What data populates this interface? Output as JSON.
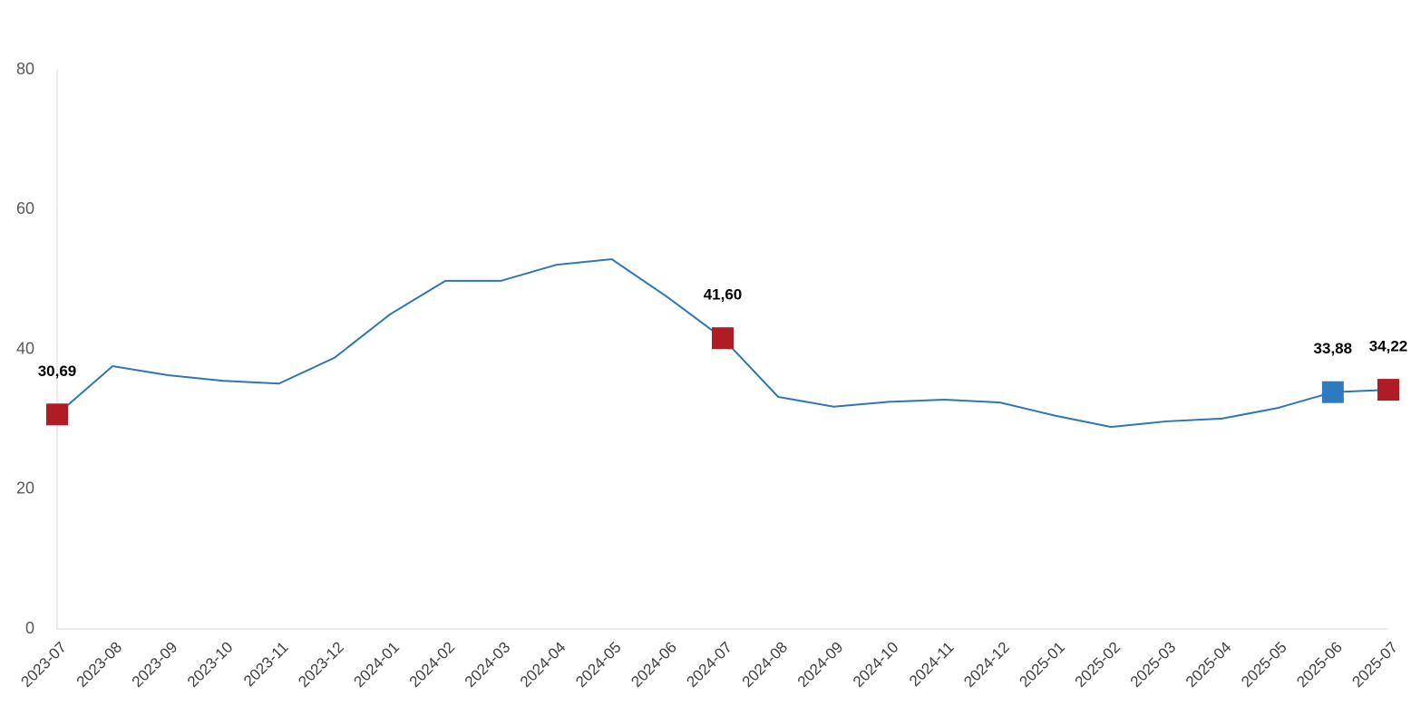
{
  "chart_data": {
    "type": "line",
    "categories": [
      "2023-07",
      "2023-08",
      "2023-09",
      "2023-10",
      "2023-11",
      "2023-12",
      "2024-01",
      "2024-02",
      "2024-03",
      "2024-04",
      "2024-05",
      "2024-06",
      "2024-07",
      "2024-08",
      "2024-09",
      "2024-10",
      "2024-11",
      "2024-12",
      "2025-01",
      "2025-02",
      "2025-03",
      "2025-04",
      "2025-05",
      "2025-06",
      "2025-07"
    ],
    "values": [
      30.69,
      37.6,
      36.3,
      35.5,
      35.1,
      38.8,
      45.0,
      49.8,
      49.8,
      52.1,
      52.9,
      47.5,
      41.6,
      33.2,
      31.8,
      32.5,
      32.8,
      32.4,
      30.5,
      28.9,
      29.7,
      30.1,
      31.6,
      33.88,
      34.22
    ],
    "value_labels": [
      "30,69",
      null,
      null,
      null,
      null,
      null,
      null,
      null,
      null,
      null,
      null,
      null,
      "41,60",
      null,
      null,
      null,
      null,
      null,
      null,
      null,
      null,
      null,
      null,
      "33,88",
      "34,22"
    ],
    "marker_colors": [
      "#b01c24",
      null,
      null,
      null,
      null,
      null,
      null,
      null,
      null,
      null,
      null,
      null,
      "#b01c24",
      null,
      null,
      null,
      null,
      null,
      null,
      null,
      null,
      null,
      null,
      "#2e7abf",
      "#b01c24"
    ],
    "color": "#2e75b6",
    "ylim": [
      0,
      80
    ],
    "yticks": [
      0,
      20,
      40,
      60,
      80
    ],
    "grid": false
  }
}
